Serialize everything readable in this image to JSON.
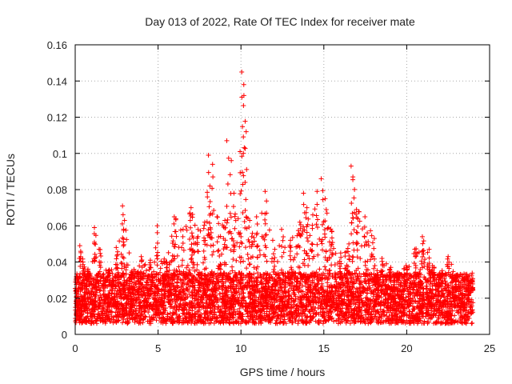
{
  "chart_data": {
    "type": "scatter",
    "title": "Day 013 of 2022, Rate Of TEC Index for receiver mate",
    "xlabel": "GPS time / hours",
    "ylabel": "ROTI / TECUs",
    "xlim": [
      0,
      25
    ],
    "ylim": [
      0,
      0.16
    ],
    "xticks": [
      0,
      5,
      10,
      15,
      20,
      25
    ],
    "yticks": [
      0,
      0.02,
      0.04,
      0.06,
      0.08,
      0.1,
      0.12,
      0.14,
      0.16
    ],
    "xtick_labels": [
      "0",
      "5",
      "10",
      "15",
      "20",
      "25"
    ],
    "ytick_labels": [
      "0",
      "0.02",
      "0.04",
      "0.06",
      "0.08",
      "0.1",
      "0.12",
      "0.14",
      "0.16"
    ],
    "grid": true,
    "marker": "+",
    "color": "#ff0000",
    "series": [
      {
        "name": "ROTI",
        "note": "dense scatter of many thousands of points between ~0.005 and ~0.035 TECU/min across 0-24 h; representative sampled envelope points and isolated spikes listed",
        "x": [
          0.1,
          0.3,
          0.5,
          0.8,
          1.2,
          1.5,
          2.0,
          2.5,
          2.9,
          3.4,
          4.0,
          4.5,
          5.0,
          5.5,
          6.0,
          6.5,
          7.0,
          7.4,
          7.8,
          8.0,
          8.1,
          8.3,
          8.6,
          9.0,
          9.2,
          9.4,
          9.6,
          10.0,
          10.1,
          10.15,
          10.2,
          10.3,
          10.5,
          11.0,
          11.5,
          12.0,
          12.5,
          13.0,
          13.5,
          13.8,
          14.0,
          14.3,
          14.6,
          14.9,
          15.1,
          15.5,
          16.0,
          16.5,
          16.7,
          16.8,
          17.0,
          17.5,
          18.0,
          18.5,
          19.0,
          19.5,
          20.0,
          20.5,
          21.0,
          21.3,
          21.6,
          22.0,
          22.5,
          23.0,
          23.5,
          23.9
        ],
        "y": [
          0.032,
          0.049,
          0.04,
          0.036,
          0.059,
          0.047,
          0.035,
          0.048,
          0.071,
          0.035,
          0.043,
          0.041,
          0.06,
          0.04,
          0.065,
          0.058,
          0.07,
          0.058,
          0.062,
          0.099,
          0.082,
          0.094,
          0.065,
          0.063,
          0.107,
          0.096,
          0.078,
          0.101,
          0.145,
          0.138,
          0.132,
          0.112,
          0.063,
          0.065,
          0.079,
          0.047,
          0.058,
          0.052,
          0.062,
          0.078,
          0.07,
          0.066,
          0.079,
          0.086,
          0.075,
          0.057,
          0.045,
          0.05,
          0.093,
          0.087,
          0.069,
          0.065,
          0.053,
          0.042,
          0.037,
          0.033,
          0.038,
          0.047,
          0.054,
          0.047,
          0.038,
          0.034,
          0.043,
          0.033,
          0.031,
          0.029
        ]
      }
    ]
  }
}
